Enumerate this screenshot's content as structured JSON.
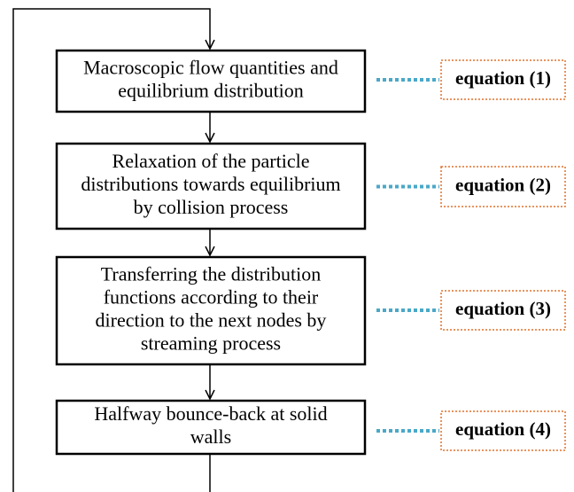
{
  "nodes": [
    {
      "lines": [
        "Macroscopic flow quantities and",
        "equilibrium distribution"
      ],
      "equation": "equation (1)"
    },
    {
      "lines": [
        "Relaxation of the particle",
        "distributions towards equilibrium",
        "by collision process"
      ],
      "equation": "equation (2)"
    },
    {
      "lines": [
        "Transferring the distribution",
        "functions according to their",
        "direction to the next nodes by",
        "streaming process"
      ],
      "equation": "equation (3)"
    },
    {
      "lines": [
        "Halfway bounce-back at solid",
        "walls"
      ],
      "equation": "equation (4)"
    }
  ]
}
